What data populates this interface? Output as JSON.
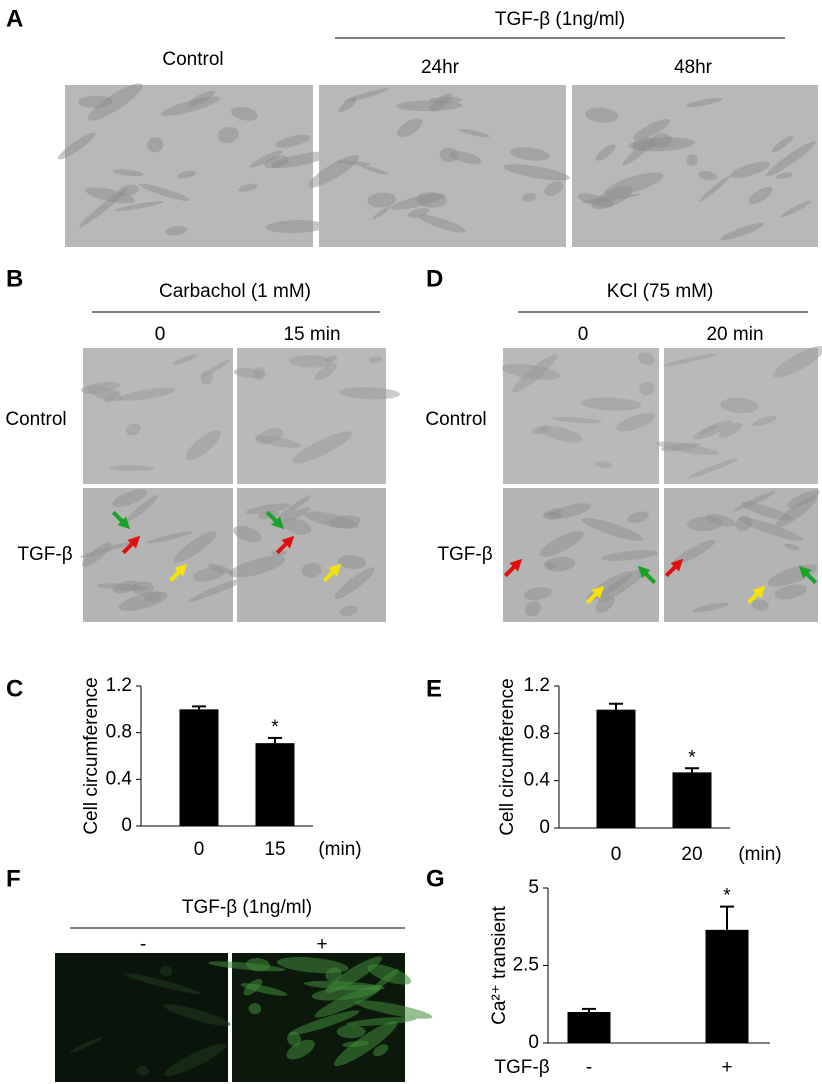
{
  "panels": {
    "A": {
      "label": "A",
      "treatment": "TGF-β (1ng/ml)",
      "columns": [
        "Control",
        "24hr",
        "48hr"
      ]
    },
    "B": {
      "label": "B",
      "treatment": "Carbachol (1 mM)",
      "columns": [
        "0",
        "15 min"
      ],
      "rows": [
        "Control",
        "TGF-β"
      ]
    },
    "D": {
      "label": "D",
      "treatment": "KCl (75 mM)",
      "columns": [
        "0",
        "20 min"
      ],
      "rows": [
        "Control",
        "TGF-β"
      ]
    },
    "F": {
      "label": "F",
      "treatment": "TGF-β (1ng/ml)",
      "columns": [
        "-",
        "+"
      ]
    }
  },
  "chart_data": [
    {
      "panel": "C",
      "type": "bar",
      "y_label": "Cell circumference",
      "categories": [
        "0",
        "15"
      ],
      "x_unit": "(min)",
      "values": [
        1.0,
        0.71
      ],
      "errors": [
        0.025,
        0.045
      ],
      "significance": "*",
      "color": "#000000",
      "ylim": [
        0,
        1.2
      ],
      "yticks": [
        0,
        0.4,
        0.8,
        1.2
      ]
    },
    {
      "panel": "E",
      "type": "bar",
      "y_label": "Cell circumference",
      "categories": [
        "0",
        "20"
      ],
      "x_unit": "(min)",
      "values": [
        1.0,
        0.47
      ],
      "errors": [
        0.05,
        0.035
      ],
      "significance": "*",
      "color": "#000000",
      "ylim": [
        0,
        1.2
      ],
      "yticks": [
        0,
        0.4,
        0.8,
        1.2
      ]
    },
    {
      "panel": "G",
      "type": "bar",
      "y_label": "Ca²⁺ transient",
      "x_label": "TGF-β",
      "categories": [
        "-",
        "+"
      ],
      "values": [
        1.0,
        3.65
      ],
      "errors": [
        0.1,
        0.75
      ],
      "significance": "*",
      "color": "#000000",
      "ylim": [
        0,
        5
      ],
      "yticks": [
        0,
        2.5,
        5
      ]
    }
  ]
}
